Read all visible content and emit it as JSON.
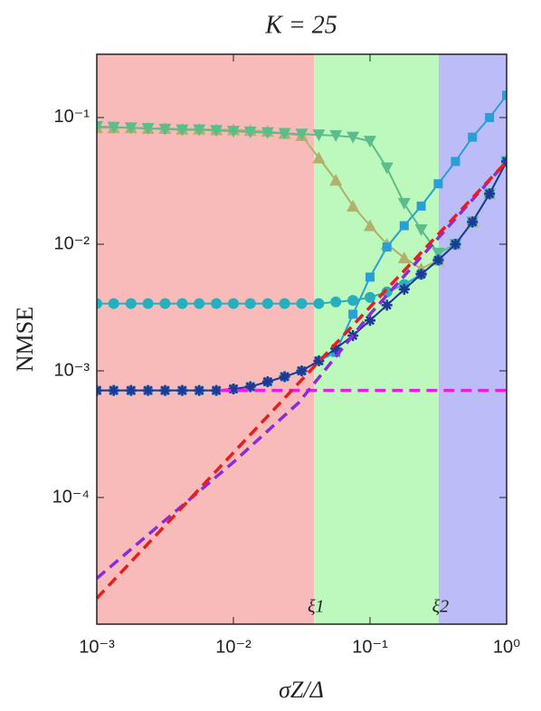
{
  "chart_data": {
    "type": "line",
    "title": "K = 25",
    "x_label": "σZ/Δ",
    "y_label": "NMSE",
    "log_x": true,
    "log_y": true,
    "xlim": [
      0.001,
      1
    ],
    "ylim": [
      1e-05,
      0.316
    ],
    "xticks": [
      {
        "value": 0.001,
        "label": "10⁻³"
      },
      {
        "value": 0.01,
        "label": "10⁻²"
      },
      {
        "value": 0.1,
        "label": "10⁻¹"
      },
      {
        "value": 1,
        "label": "10⁰"
      }
    ],
    "yticks": [
      {
        "value": 0.0001,
        "label": "10⁻⁴"
      },
      {
        "value": 0.001,
        "label": "10⁻³"
      },
      {
        "value": 0.01,
        "label": "10⁻²"
      },
      {
        "value": 0.1,
        "label": "10⁻¹"
      }
    ],
    "regions": [
      {
        "from": 0.001,
        "to": 0.039,
        "color": "#f9baba"
      },
      {
        "from": 0.039,
        "to": 0.318,
        "color": "#bdf9bd"
      },
      {
        "from": 0.318,
        "to": 1,
        "color": "#bcbcf8"
      }
    ],
    "annotations": [
      {
        "text": "ξ1",
        "x": 0.039
      },
      {
        "text": "ξ2",
        "x": 0.318
      }
    ],
    "x": [
      0.001,
      0.00133,
      0.00178,
      0.00237,
      0.00316,
      0.00422,
      0.00562,
      0.0075,
      0.01,
      0.0133,
      0.0178,
      0.0237,
      0.0316,
      0.0422,
      0.0562,
      0.075,
      0.1,
      0.133,
      0.178,
      0.237,
      0.316,
      0.422,
      0.562,
      0.75,
      1
    ],
    "series": [
      {
        "color": "#b1b06c",
        "marker": "triangle-up",
        "values": [
          0.083,
          0.083,
          0.083,
          0.082,
          0.082,
          0.081,
          0.081,
          0.08,
          0.08,
          0.079,
          0.078,
          0.075,
          0.072,
          0.048,
          0.032,
          0.02,
          0.014,
          0.01,
          0.0078,
          0.0064,
          0.0075,
          0.01,
          0.015,
          0.025,
          0.045
        ]
      },
      {
        "color": "#5cbd8c",
        "marker": "triangle-down",
        "values": [
          0.085,
          0.084,
          0.083,
          0.082,
          0.081,
          0.08,
          0.08,
          0.079,
          0.078,
          0.077,
          0.076,
          0.075,
          0.074,
          0.073,
          0.072,
          0.07,
          0.065,
          0.04,
          0.021,
          0.013,
          0.0085,
          0.01,
          0.015,
          0.025,
          0.045
        ]
      },
      {
        "color": "#2a9fd6",
        "marker": "square",
        "values": [
          0.0007,
          0.0007,
          0.0007,
          0.0007,
          0.0007,
          0.0007,
          0.0007,
          0.0007,
          0.00072,
          0.00075,
          0.00082,
          0.0009,
          0.001,
          0.0012,
          0.0014,
          0.0028,
          0.0055,
          0.0095,
          0.014,
          0.02,
          0.03,
          0.045,
          0.07,
          0.1,
          0.15
        ]
      },
      {
        "color": "#26b0be",
        "marker": "circle",
        "values": [
          0.0034,
          0.0034,
          0.0034,
          0.0034,
          0.0034,
          0.0034,
          0.0034,
          0.0034,
          0.0034,
          0.0034,
          0.0034,
          0.0034,
          0.0034,
          0.0034,
          0.0035,
          0.0036,
          0.0038,
          0.0042,
          0.0048,
          0.0058,
          0.0075,
          0.01,
          0.015,
          0.025,
          0.045
        ]
      },
      {
        "color": "#1f3a93",
        "marker": "star",
        "values": [
          0.0007,
          0.0007,
          0.0007,
          0.0007,
          0.0007,
          0.0007,
          0.0007,
          0.0007,
          0.00072,
          0.00075,
          0.00082,
          0.0009,
          0.001,
          0.0012,
          0.0015,
          0.0019,
          0.0025,
          0.0033,
          0.0044,
          0.0058,
          0.0075,
          0.01,
          0.015,
          0.025,
          0.045
        ]
      },
      {
        "color": "#ee1be6",
        "dash": true,
        "x": [
          0.008,
          1
        ],
        "values": [
          0.0007,
          0.0007
        ]
      },
      {
        "color": "#8a2be2",
        "dash": true,
        "x": [
          0.001,
          0.01,
          0.03,
          0.1,
          1
        ],
        "values": [
          2.3e-05,
          0.00019,
          0.00056,
          0.0028,
          0.045
        ]
      },
      {
        "color": "#e61e1e",
        "dash": true,
        "x": [
          0.001,
          1
        ],
        "values": [
          1.6e-05,
          0.045
        ]
      }
    ]
  }
}
